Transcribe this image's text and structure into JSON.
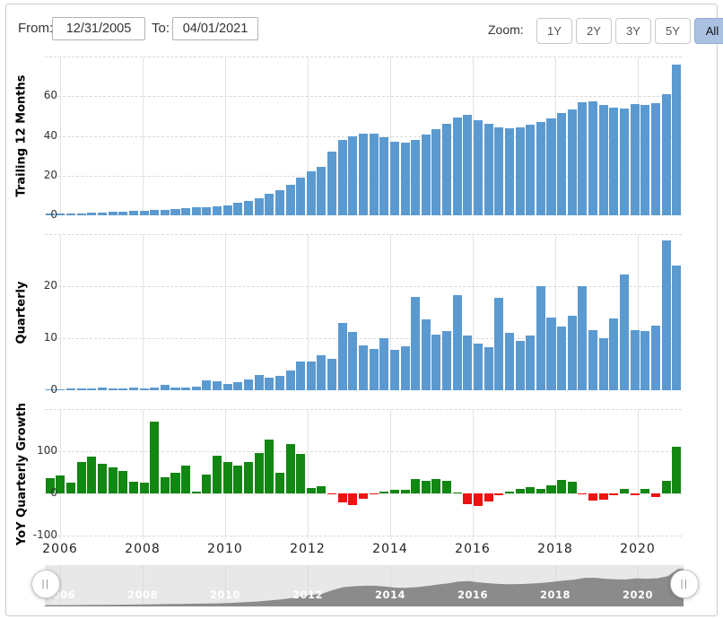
{
  "controls": {
    "from_label": "From:",
    "from_value": "12/31/2005",
    "to_label": "To:",
    "to_value": "04/01/2021",
    "zoom_label": "Zoom:",
    "zoom_options": [
      {
        "label": "1Y",
        "active": false
      },
      {
        "label": "2Y",
        "active": false
      },
      {
        "label": "3Y",
        "active": false
      },
      {
        "label": "5Y",
        "active": false
      },
      {
        "label": "All",
        "active": true
      }
    ],
    "active_zoom_bg": "#abc1e1"
  },
  "xaxis": {
    "labels": [
      "2006",
      "2008",
      "2010",
      "2012",
      "2014",
      "2016",
      "2018",
      "2020"
    ],
    "interval": "quarter",
    "start": "2005-Q4",
    "end": "2021-Q1"
  },
  "chart_data": [
    {
      "type": "bar",
      "id": "ttm",
      "ylabel": "Trailing 12 Months",
      "yticks": [
        0,
        20,
        40,
        60
      ],
      "ygrid": [
        0,
        20,
        40,
        60,
        80
      ],
      "ylim": [
        0,
        80
      ],
      "color": "#5b9ad0",
      "values": [
        0.9,
        0.9,
        1.0,
        1.1,
        1.3,
        1.5,
        1.7,
        1.9,
        2.1,
        2.4,
        2.6,
        2.9,
        3.3,
        3.6,
        3.9,
        4.1,
        4.5,
        5.2,
        6.3,
        7.4,
        8.6,
        10.8,
        12.6,
        15.3,
        19.0,
        22.2,
        24.5,
        32.0,
        38.0,
        40.0,
        41.0,
        41.0,
        39.5,
        37.0,
        36.5,
        38.0,
        40.5,
        43.5,
        46.0,
        49.5,
        50.5,
        48.0,
        46.0,
        44.5,
        44.0,
        44.5,
        45.5,
        47.0,
        49.0,
        51.5,
        53.5,
        57.0,
        57.5,
        55.5,
        54.5,
        54.0,
        56.0,
        55.5,
        56.5,
        61.0,
        76.0
      ]
    },
    {
      "type": "bar",
      "id": "quarterly",
      "ylabel": "Quarterly",
      "yticks": [
        0,
        10,
        20
      ],
      "ygrid": [
        0,
        10,
        20,
        30
      ],
      "ylim": [
        0,
        30
      ],
      "color": "#5b9ad0",
      "values": [
        0.25,
        0.2,
        0.3,
        0.3,
        0.3,
        0.6,
        0.35,
        0.4,
        0.5,
        0.4,
        0.5,
        1.0,
        0.6,
        0.6,
        0.7,
        1.9,
        1.7,
        1.2,
        1.5,
        2.1,
        2.9,
        2.5,
        2.7,
        3.8,
        5.6,
        5.5,
        6.8,
        6.1,
        13.0,
        11.2,
        8.7,
        8.0,
        10.0,
        7.8,
        8.4,
        18.0,
        13.6,
        10.7,
        11.3,
        18.2,
        10.6,
        8.9,
        8.2,
        17.8,
        11.0,
        9.5,
        10.5,
        20.0,
        13.9,
        12.2,
        14.3,
        20.0,
        11.5,
        10.0,
        13.8,
        22.3,
        11.5,
        11.3,
        12.5,
        28.8,
        24.0
      ]
    },
    {
      "type": "bar",
      "id": "yoy-growth",
      "ylabel": "YoY Quarterly Growth",
      "yticks": [
        -100,
        0,
        100
      ],
      "ygrid": [
        -100,
        0,
        100,
        200
      ],
      "ylim": [
        -110,
        200
      ],
      "positive_color": "#128712",
      "negative_color": "#ee1212",
      "values": [
        37,
        43,
        25,
        75,
        88,
        70,
        62,
        53,
        28,
        25,
        170,
        38,
        50,
        65,
        5,
        45,
        90,
        75,
        67,
        75,
        95,
        128,
        48,
        118,
        93,
        13,
        18,
        -2,
        -22,
        -28,
        -12,
        -3,
        5,
        8,
        8,
        35,
        30,
        35,
        30,
        3,
        -25,
        -30,
        -20,
        -5,
        5,
        10,
        15,
        10,
        20,
        32,
        28,
        -2,
        -18,
        -14,
        -4,
        10,
        -4,
        10,
        -8,
        30,
        110
      ]
    }
  ],
  "navigator": {
    "labels": [
      "2006",
      "2008",
      "2010",
      "2012",
      "2014",
      "2016",
      "2018",
      "2020"
    ],
    "handle_icon": "||",
    "area_color": "#8b8b8b",
    "track_color": "#e8e8e8"
  }
}
